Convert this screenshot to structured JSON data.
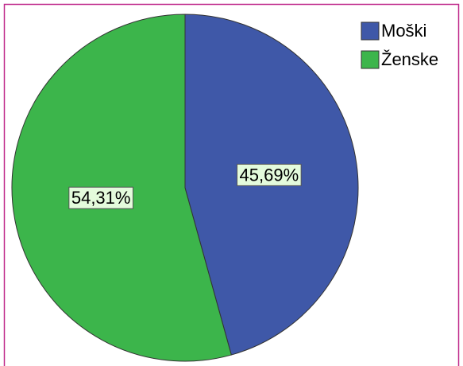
{
  "chart_data": {
    "type": "pie",
    "categories": [
      "Moški",
      "Ženske"
    ],
    "values": [
      45.69,
      54.31
    ],
    "value_labels": [
      "45,69%",
      "54,31%"
    ],
    "colors": [
      "#3f58a8",
      "#3cb54b"
    ],
    "legend": "upper right"
  }
}
